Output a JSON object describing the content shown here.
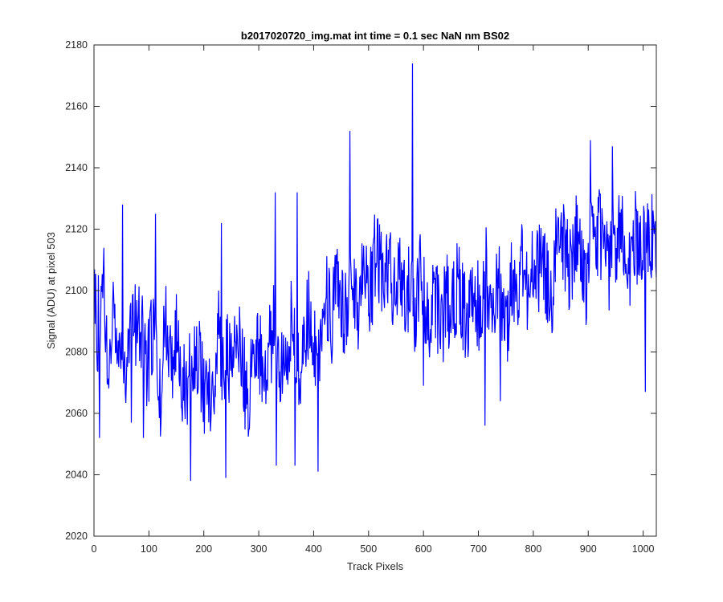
{
  "chart_data": {
    "type": "line",
    "title": "b2017020720_img.mat int time = 0.1 sec  NaN nm BS02",
    "xlabel": "Track Pixels",
    "ylabel": "Signal (ADU) at pixel 503",
    "xlim": [
      0,
      1024
    ],
    "ylim": [
      2020,
      2180
    ],
    "xticks": [
      0,
      100,
      200,
      300,
      400,
      500,
      600,
      700,
      800,
      900,
      1000
    ],
    "yticks": [
      2020,
      2040,
      2060,
      2080,
      2100,
      2120,
      2140,
      2160,
      2180
    ],
    "grid": false,
    "legend": "none",
    "series": [
      {
        "color": "#0000ff",
        "x_start": 1,
        "x_step": 8,
        "values": [
          2095,
          2085,
          2105,
          2070,
          2098,
          2092,
          2080,
          2076,
          2090,
          2088,
          2094,
          2082,
          2074,
          2086,
          2080,
          2062,
          2091,
          2084,
          2078,
          2090,
          2072,
          2066,
          2083,
          2079,
          2075,
          2068,
          2070,
          2061,
          2088,
          2077,
          2081,
          2073,
          2079,
          2086,
          2071,
          2064,
          2080,
          2085,
          2077,
          2069,
          2082,
          2089,
          2074,
          2078,
          2084,
          2091,
          2076,
          2073,
          2087,
          2094,
          2083,
          2080,
          2092,
          2098,
          2089,
          2100,
          2096,
          2090,
          2104,
          2101,
          2095,
          2111,
          2106,
          2099,
          2114,
          2108,
          2102,
          2110,
          2097,
          2105,
          2100,
          2096,
          2104,
          2093,
          2107,
          2099,
          2089,
          2102,
          2095,
          2086,
          2100,
          2091,
          2098,
          2104,
          2094,
          2088,
          2101,
          2096,
          2093,
          2109,
          2092,
          2097,
          2102,
          2094,
          2089,
          2105,
          2099,
          2108,
          2103,
          2097,
          2111,
          2106,
          2114,
          2101,
          2098,
          2112,
          2109,
          2116,
          2104,
          2113,
          2119,
          2108,
          2102,
          2117,
          2114,
          2121,
          2110,
          2107,
          2118,
          2112,
          2123,
          2115,
          2109,
          2119,
          2114,
          2113,
          2116,
          2118
        ]
      }
    ],
    "annotations": [
      {
        "x": 8,
        "y": 2105,
        "note": "max"
      },
      {
        "x": 10,
        "y": 2052,
        "note": "min"
      },
      {
        "x": 52,
        "y": 2128,
        "note": "max"
      },
      {
        "x": 68,
        "y": 2057,
        "note": "min"
      },
      {
        "x": 90,
        "y": 2052,
        "note": "min"
      },
      {
        "x": 112,
        "y": 2125,
        "note": "max"
      },
      {
        "x": 176,
        "y": 2038,
        "note": "min"
      },
      {
        "x": 232,
        "y": 2122,
        "note": "max"
      },
      {
        "x": 240,
        "y": 2039,
        "note": "min"
      },
      {
        "x": 330,
        "y": 2132,
        "note": "max"
      },
      {
        "x": 332,
        "y": 2043,
        "note": "min"
      },
      {
        "x": 366,
        "y": 2043,
        "note": "min"
      },
      {
        "x": 370,
        "y": 2132,
        "note": "max"
      },
      {
        "x": 408,
        "y": 2041,
        "note": "min"
      },
      {
        "x": 466,
        "y": 2152,
        "note": "max"
      },
      {
        "x": 580,
        "y": 2174,
        "note": "max"
      },
      {
        "x": 600,
        "y": 2069,
        "note": "min"
      },
      {
        "x": 712,
        "y": 2056,
        "note": "min"
      },
      {
        "x": 740,
        "y": 2064,
        "note": "min"
      },
      {
        "x": 904,
        "y": 2149,
        "note": "max"
      },
      {
        "x": 944,
        "y": 2147,
        "note": "max"
      },
      {
        "x": 1004,
        "y": 2067,
        "note": "min"
      }
    ]
  }
}
